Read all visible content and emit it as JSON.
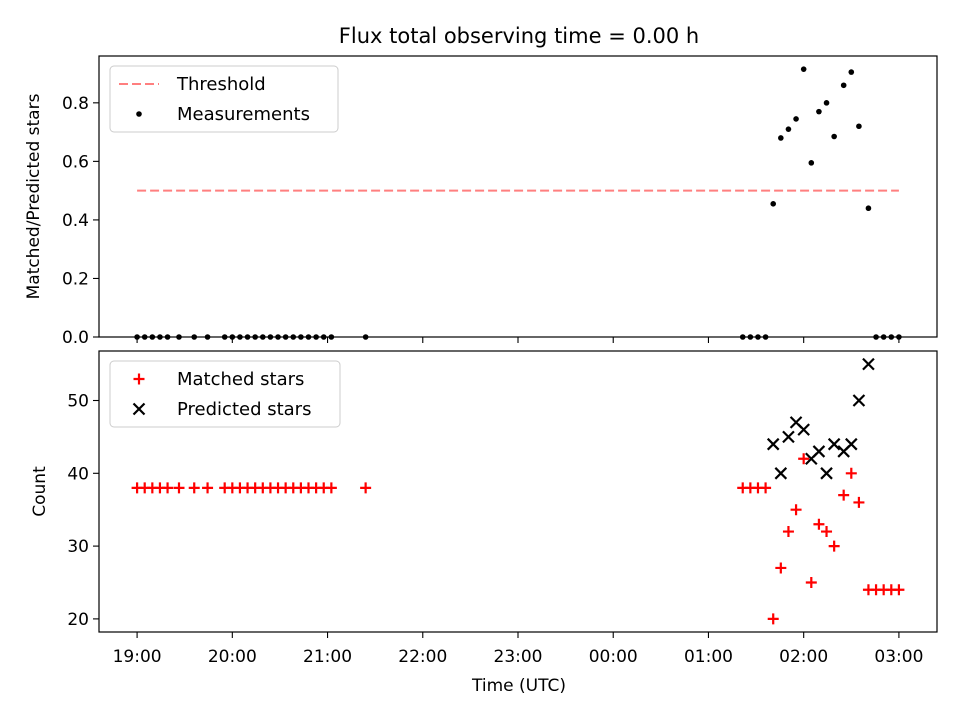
{
  "chart_data": {
    "title": "Flux total observing time = 0.00 h",
    "xlabel": "Time (UTC)",
    "x_tick_labels": [
      "19:00",
      "20:00",
      "21:00",
      "22:00",
      "23:00",
      "00:00",
      "01:00",
      "02:00",
      "03:00"
    ],
    "x_tick_hours": [
      0,
      1,
      2,
      3,
      4,
      5,
      6,
      7,
      8
    ],
    "x_unit": "hours after 19:00 UTC",
    "xlim": [
      -0.4,
      8.4
    ],
    "panels": [
      {
        "type": "scatter",
        "ylabel": "Matched/Predicted stars",
        "ylim": [
          0,
          0.96
        ],
        "y_ticks": [
          0.0,
          0.2,
          0.4,
          0.6,
          0.8
        ],
        "y_tick_labels": [
          "0.0",
          "0.2",
          "0.4",
          "0.6",
          "0.8"
        ],
        "legend_position": "top-left",
        "legend": [
          "Threshold",
          "Measurements"
        ],
        "threshold": {
          "name": "Threshold",
          "y": 0.5,
          "x_range": [
            0,
            8
          ],
          "color": "#ff7f7f",
          "style": "dashed"
        },
        "series": [
          {
            "name": "Measurements",
            "marker": "dot",
            "color": "#000000",
            "points": [
              [
                0.0,
                0
              ],
              [
                0.08,
                0
              ],
              [
                0.16,
                0
              ],
              [
                0.24,
                0
              ],
              [
                0.32,
                0
              ],
              [
                0.44,
                0
              ],
              [
                0.6,
                0
              ],
              [
                0.74,
                0
              ],
              [
                0.92,
                0
              ],
              [
                1.0,
                0
              ],
              [
                1.08,
                0
              ],
              [
                1.16,
                0
              ],
              [
                1.24,
                0
              ],
              [
                1.32,
                0
              ],
              [
                1.4,
                0
              ],
              [
                1.48,
                0
              ],
              [
                1.56,
                0
              ],
              [
                1.64,
                0
              ],
              [
                1.72,
                0
              ],
              [
                1.8,
                0
              ],
              [
                1.88,
                0
              ],
              [
                1.96,
                0
              ],
              [
                2.04,
                0
              ],
              [
                2.4,
                0
              ],
              [
                6.36,
                0
              ],
              [
                6.44,
                0
              ],
              [
                6.52,
                0
              ],
              [
                6.6,
                0
              ],
              [
                6.68,
                0.455
              ],
              [
                6.76,
                0.68
              ],
              [
                6.84,
                0.71
              ],
              [
                6.92,
                0.745
              ],
              [
                7.0,
                0.915
              ],
              [
                7.08,
                0.595
              ],
              [
                7.16,
                0.77
              ],
              [
                7.24,
                0.8
              ],
              [
                7.32,
                0.685
              ],
              [
                7.42,
                0.86
              ],
              [
                7.5,
                0.905
              ],
              [
                7.58,
                0.72
              ],
              [
                7.68,
                0.44
              ],
              [
                7.76,
                0
              ],
              [
                7.84,
                0
              ],
              [
                7.92,
                0
              ],
              [
                8.0,
                0
              ]
            ]
          }
        ]
      },
      {
        "type": "scatter",
        "ylabel": "Count",
        "ylim": [
          18.2,
          56.8
        ],
        "y_ticks": [
          20,
          30,
          40,
          50
        ],
        "y_tick_labels": [
          "20",
          "30",
          "40",
          "50"
        ],
        "legend_position": "top-left",
        "legend": [
          "Matched stars",
          "Predicted stars"
        ],
        "series": [
          {
            "name": "Matched stars",
            "marker": "plus",
            "color": "#ff0000",
            "points": [
              [
                0.0,
                38
              ],
              [
                0.08,
                38
              ],
              [
                0.16,
                38
              ],
              [
                0.24,
                38
              ],
              [
                0.32,
                38
              ],
              [
                0.44,
                38
              ],
              [
                0.6,
                38
              ],
              [
                0.74,
                38
              ],
              [
                0.92,
                38
              ],
              [
                1.0,
                38
              ],
              [
                1.08,
                38
              ],
              [
                1.16,
                38
              ],
              [
                1.24,
                38
              ],
              [
                1.32,
                38
              ],
              [
                1.4,
                38
              ],
              [
                1.48,
                38
              ],
              [
                1.56,
                38
              ],
              [
                1.64,
                38
              ],
              [
                1.72,
                38
              ],
              [
                1.8,
                38
              ],
              [
                1.88,
                38
              ],
              [
                1.96,
                38
              ],
              [
                2.04,
                38
              ],
              [
                2.4,
                38
              ],
              [
                6.36,
                38
              ],
              [
                6.44,
                38
              ],
              [
                6.52,
                38
              ],
              [
                6.6,
                38
              ],
              [
                6.68,
                20
              ],
              [
                6.76,
                27
              ],
              [
                6.84,
                32
              ],
              [
                6.92,
                35
              ],
              [
                7.0,
                42
              ],
              [
                7.08,
                25
              ],
              [
                7.16,
                33
              ],
              [
                7.24,
                32
              ],
              [
                7.32,
                30
              ],
              [
                7.42,
                37
              ],
              [
                7.5,
                40
              ],
              [
                7.58,
                36
              ],
              [
                7.68,
                24
              ],
              [
                7.76,
                24
              ],
              [
                7.84,
                24
              ],
              [
                7.92,
                24
              ],
              [
                8.0,
                24
              ]
            ]
          },
          {
            "name": "Predicted stars",
            "marker": "x",
            "color": "#000000",
            "points": [
              [
                6.68,
                44
              ],
              [
                6.76,
                40
              ],
              [
                6.84,
                45
              ],
              [
                6.92,
                47
              ],
              [
                7.0,
                46
              ],
              [
                7.08,
                42
              ],
              [
                7.16,
                43
              ],
              [
                7.24,
                40
              ],
              [
                7.32,
                44
              ],
              [
                7.42,
                43
              ],
              [
                7.5,
                44
              ],
              [
                7.58,
                50
              ],
              [
                7.68,
                55
              ]
            ]
          }
        ]
      }
    ]
  }
}
